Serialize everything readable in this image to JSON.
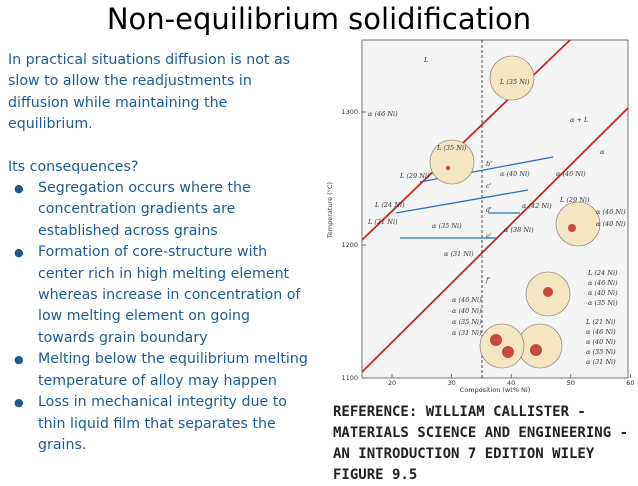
{
  "title": "Non-equilibrium solidification",
  "body": {
    "intro": "In practical situations diffusion is not as slow to allow the readjustments in diffusion while maintaining the equilibrium.",
    "heading": "Its consequences?",
    "bullets": [
      "Segregation occurs where the concentration gradients are established across grains",
      "Formation of core-structure with center rich in high melting element whereas increase in concentration of low melting element on going towards grain boundary",
      "Melting below the equilibrium melting temperature of alloy may happen",
      "Loss in mechanical integrity due to thin liquid film that separates the grains."
    ]
  },
  "figure": {
    "y_axis_label": "Temperature (°C)",
    "x_axis_label": "Composition (wt% Ni)",
    "yticks": [
      1100,
      1200,
      1300
    ],
    "xticks": [
      20,
      30,
      40,
      50,
      60
    ],
    "labels": [
      "L",
      "L (35 Ni)",
      "L (35 Ni)",
      "α (46 Ni)",
      "α + L",
      "α",
      "L (29 Ni)",
      "L (24 Ni)",
      "L (21 Ni)",
      "α (40 Ni)",
      "α (46 Ni)",
      "α (42 Ni)",
      "α (35 Ni)",
      "α (38 Ni)",
      "α (31 Ni)",
      "L (29 Ni)",
      "α (46 Ni)",
      "α (40 Ni)",
      "L (24 Ni)",
      "α (46 Ni)",
      "α (40 Ni)",
      "α (35 Ni)",
      "L (21 Ni)",
      "α (46 Ni)",
      "α (40 Ni)",
      "α (35 Ni)",
      "α (31 Ni)",
      "α (46 Ni)",
      "α (40 Ni)",
      "α (35 Ni)",
      "α (31 Ni)",
      "b'",
      "c'",
      "d'",
      "e'",
      "f'"
    ]
  },
  "reference": "REFERENCE: WILLIAM CALLISTER - MATERIALS SCIENCE AND ENGINEERING - AN INTRODUCTION 7 EDITION WILEY FIGURE 9.5"
}
